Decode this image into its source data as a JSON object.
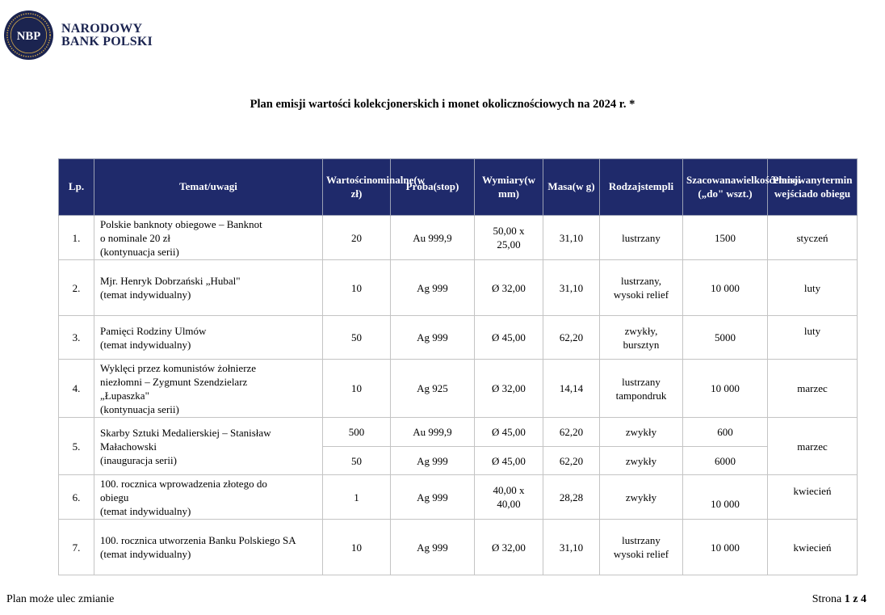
{
  "header": {
    "logo_text": "NBP",
    "bank_name_line1": "NARODOWY",
    "bank_name_line2": "BANK POLSKI"
  },
  "title": "Plan emisji wartości kolekcjonerskich i monet okolicznościowych na 2024 r. *",
  "table": {
    "columns": [
      [
        "Lp."
      ],
      [
        "Temat/uwagi"
      ],
      [
        "Wartości",
        "nominalne",
        "(w zł)"
      ],
      [
        "Próba",
        "(stop)"
      ],
      [
        "Wymiary",
        "(w mm)"
      ],
      [
        "Masa",
        "(w g)"
      ],
      [
        "Rodzaj",
        "stempli"
      ],
      [
        "Szacowana",
        "wielkość",
        "emisji („do\" w",
        "szt.)"
      ],
      [
        "Planowany",
        "termin wejścia",
        "do obiegu"
      ]
    ],
    "rows": [
      {
        "lp": "1.",
        "topic": [
          "Polskie banknoty obiegowe – Banknot",
          "o nominale 20 zł",
          "(kontynuacja serii)"
        ],
        "nominal": "20",
        "alloy": "Au 999,9",
        "dimensions": [
          "50,00 x",
          "25,00"
        ],
        "mass": "31,10",
        "stamp": [
          "lustrzany"
        ],
        "volume": "1500",
        "date": "styczeń"
      },
      {
        "lp": "2.",
        "topic": [
          "Mjr. Henryk Dobrzański „Hubal\"",
          "(temat indywidualny)"
        ],
        "nominal": "10",
        "alloy": "Ag 999",
        "dimensions": [
          "Ø 32,00"
        ],
        "mass": "31,10",
        "stamp": [
          "lustrzany,",
          "wysoki relief"
        ],
        "volume": "10 000",
        "date": "luty"
      },
      {
        "lp": "3.",
        "topic": [
          "Pamięci  Rodziny Ulmów",
          "(temat indywidualny)"
        ],
        "nominal": "50",
        "alloy": "Ag 999",
        "dimensions": [
          "Ø 45,00"
        ],
        "mass": "62,20",
        "stamp": [
          "zwykły,",
          "bursztyn"
        ],
        "volume": "5000",
        "date": "luty"
      },
      {
        "lp": "4.",
        "topic": [
          "Wyklęci przez komunistów żołnierze",
          "niezłomni – Zygmunt Szendzielarz",
          "„Łupaszka\"",
          "(kontynuacja serii)"
        ],
        "nominal": "10",
        "alloy": "Ag 925",
        "dimensions": [
          "Ø 32,00"
        ],
        "mass": "14,14",
        "stamp": [
          "lustrzany",
          "tampondruk"
        ],
        "volume": "10 000",
        "date": "marzec"
      },
      {
        "lp": "5.",
        "topic": [
          "Skarby Sztuki Medalierskiej –  Stanisław",
          "Małachowski",
          "(inauguracja serii)"
        ],
        "sub": [
          {
            "nominal": "500",
            "alloy": "Au 999,9",
            "dimensions": "Ø 45,00",
            "mass": "62,20",
            "stamp": "zwykły",
            "volume": "600"
          },
          {
            "nominal": "50",
            "alloy": "Ag 999",
            "dimensions": "Ø 45,00",
            "mass": "62,20",
            "stamp": "zwykły",
            "volume": "6000"
          }
        ],
        "date": "marzec"
      },
      {
        "lp": "6.",
        "topic": [
          "100. rocznica wprowadzenia złotego do",
          "obiegu",
          "(temat indywidualny)"
        ],
        "nominal": "1",
        "alloy": "Ag 999",
        "dimensions": [
          "40,00 x",
          "40,00"
        ],
        "mass": "28,28",
        "stamp": [
          "zwykły"
        ],
        "volume": "10 000",
        "date": "kwiecień"
      },
      {
        "lp": "7.",
        "topic": [
          "100. rocznica utworzenia Banku Polskiego SA",
          "(temat indywidualny)"
        ],
        "nominal": "10",
        "alloy": "Ag 999",
        "dimensions": [
          "Ø 32,00"
        ],
        "mass": "31,10",
        "stamp": [
          "lustrzany",
          "wysoki relief"
        ],
        "volume": "10 000",
        "date": "kwiecień"
      }
    ]
  },
  "footer": {
    "note": "Plan może ulec zmianie",
    "page_prefix": "Strona ",
    "page_current": "1",
    "page_sep": " z ",
    "page_total": "4"
  },
  "colors": {
    "header_bg": "#1f2a6b",
    "logo_navy": "#1b2450",
    "logo_gold": "#c9a24a"
  }
}
